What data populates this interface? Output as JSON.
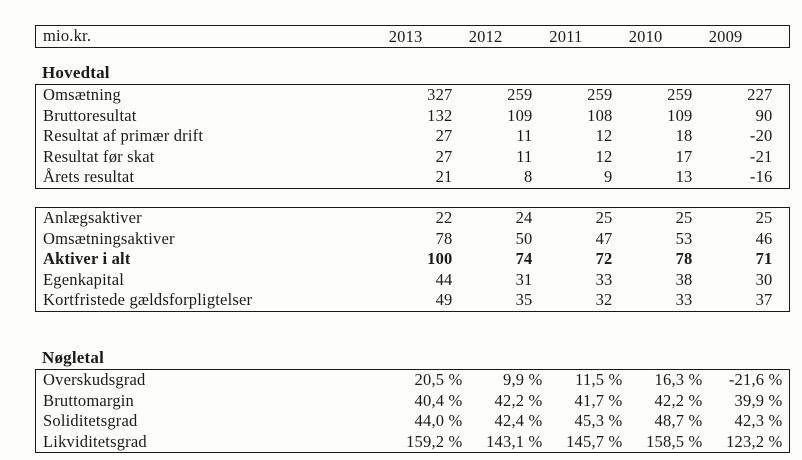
{
  "document": {
    "unit_label": "mio.kr.",
    "years": [
      "2013",
      "2012",
      "2011",
      "2010",
      "2009"
    ]
  },
  "sections": {
    "hovedtal": {
      "heading": "Hovedtal",
      "income_rows": [
        {
          "label": "Omsætning",
          "bold": false,
          "values": [
            "327",
            "259",
            "259",
            "259",
            "227"
          ]
        },
        {
          "label": "Bruttoresultat",
          "bold": false,
          "values": [
            "132",
            "109",
            "108",
            "109",
            "90"
          ]
        },
        {
          "label": "Resultat af primær drift",
          "bold": false,
          "values": [
            "27",
            "11",
            "12",
            "18",
            "-20"
          ]
        },
        {
          "label": "Resultat før skat",
          "bold": false,
          "values": [
            "27",
            "11",
            "12",
            "17",
            "-21"
          ]
        },
        {
          "label": "Årets resultat",
          "bold": false,
          "values": [
            "21",
            "8",
            "9",
            "13",
            "-16"
          ]
        }
      ],
      "balance_rows": [
        {
          "label": "Anlægsaktiver",
          "bold": false,
          "values": [
            "22",
            "24",
            "25",
            "25",
            "25"
          ]
        },
        {
          "label": "Omsætningsaktiver",
          "bold": false,
          "values": [
            "78",
            "50",
            "47",
            "53",
            "46"
          ]
        },
        {
          "label": "Aktiver i alt",
          "bold": true,
          "values": [
            "100",
            "74",
            "72",
            "78",
            "71"
          ]
        },
        {
          "label": "Egenkapital",
          "bold": false,
          "values": [
            "44",
            "31",
            "33",
            "38",
            "30"
          ]
        },
        {
          "label": "Kortfristede gældsforpligtelser",
          "bold": false,
          "values": [
            "49",
            "35",
            "32",
            "33",
            "37"
          ]
        }
      ]
    },
    "nogletal": {
      "heading": "Nøgletal",
      "ratio_rows": [
        {
          "label": "Overskudsgrad",
          "bold": false,
          "values": [
            "20,5 %",
            "9,9 %",
            "11,5 %",
            "16,3 %",
            "-21,6 %"
          ]
        },
        {
          "label": "Bruttomargin",
          "bold": false,
          "values": [
            "40,4 %",
            "42,2 %",
            "41,7 %",
            "42,2 %",
            "39,9 %"
          ]
        },
        {
          "label": "Soliditetsgrad",
          "bold": false,
          "values": [
            "44,0 %",
            "42,4 %",
            "45,3 %",
            "48,7 %",
            "42,3 %"
          ]
        },
        {
          "label": "Likviditetsgrad",
          "bold": false,
          "values": [
            "159,2 %",
            "143,1 %",
            "145,7 %",
            "158,5 %",
            "123,2 %"
          ]
        }
      ]
    }
  },
  "colors": {
    "text": "#1a1a1a",
    "border": "#1a1a1a",
    "background": "#fdfdfb"
  }
}
